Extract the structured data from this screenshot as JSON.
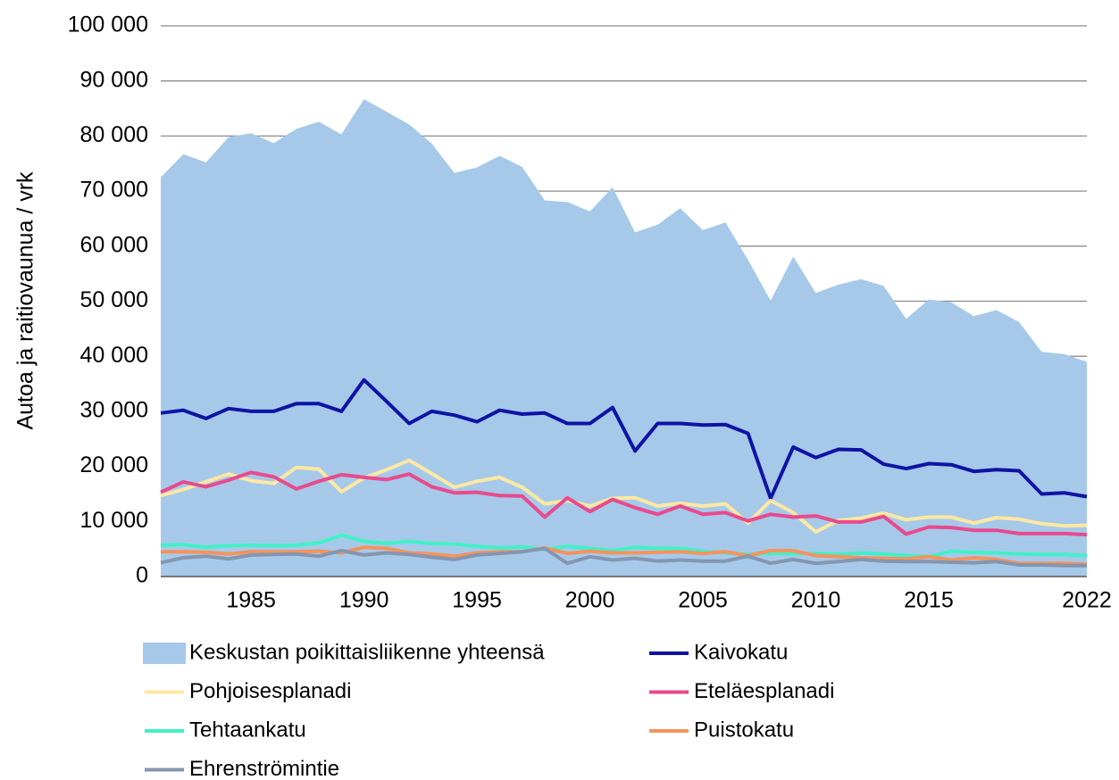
{
  "chart_data": {
    "type": "line",
    "y_label": "Autoa ja raitiovaunua / vrk",
    "categories": [
      null,
      null,
      null,
      null,
      "1985",
      null,
      null,
      null,
      null,
      "1990",
      null,
      null,
      null,
      null,
      "1995",
      null,
      null,
      null,
      null,
      "2000",
      null,
      null,
      null,
      null,
      "2005",
      null,
      null,
      null,
      null,
      "2010",
      null,
      null,
      null,
      null,
      "2015",
      null,
      null,
      null,
      null,
      null,
      null,
      "2022"
    ],
    "ylim": [
      0,
      100000
    ],
    "yticks": [
      {
        "value": 0,
        "label": "0"
      },
      {
        "value": 10000,
        "label": "10 000"
      },
      {
        "value": 20000,
        "label": "20 000"
      },
      {
        "value": 30000,
        "label": "30 000"
      },
      {
        "value": 40000,
        "label": "40 000"
      },
      {
        "value": 50000,
        "label": "50 000"
      },
      {
        "value": 60000,
        "label": "60 000"
      },
      {
        "value": 70000,
        "label": "70 000"
      },
      {
        "value": 80000,
        "label": "80 000"
      },
      {
        "value": 90000,
        "label": "90 000"
      },
      {
        "value": 100000,
        "label": "100 000"
      }
    ],
    "grid": true,
    "series": [
      {
        "name": "Keskustan poikittaisliikenne yhteensä",
        "color": "#a6c9ea",
        "fill": true,
        "values": [
          72500,
          76700,
          75200,
          79800,
          80500,
          78700,
          81300,
          82600,
          80300,
          86700,
          84400,
          82100,
          78600,
          73300,
          74300,
          76400,
          74400,
          68300,
          68000,
          66300,
          70700,
          62500,
          63900,
          66900,
          62900,
          64300,
          57500,
          50100,
          58100,
          51500,
          53000,
          54000,
          52800,
          46800,
          50300,
          49800,
          47300,
          48400,
          46200,
          40800,
          40400,
          39000
        ]
      },
      {
        "name": "Kaivokatu",
        "color": "#0f13a3",
        "values": [
          29700,
          30200,
          28700,
          30500,
          30000,
          30000,
          31400,
          31400,
          30000,
          35700,
          31800,
          27800,
          30000,
          29300,
          28100,
          30200,
          29500,
          29700,
          27800,
          27800,
          30700,
          22800,
          27800,
          27800,
          27500,
          27600,
          26000,
          14200,
          23500,
          21600,
          23100,
          23000,
          20400,
          19600,
          20500,
          20300,
          19100,
          19400,
          19200,
          15000,
          15200,
          14500
        ]
      },
      {
        "name": "Pohjoisesplanadi",
        "color": "#fde8a2",
        "values": [
          14700,
          15800,
          17200,
          18600,
          17400,
          16900,
          19800,
          19500,
          15400,
          17900,
          19400,
          21100,
          18700,
          16200,
          17300,
          18000,
          16200,
          13200,
          13800,
          12800,
          14200,
          14300,
          12800,
          13300,
          12800,
          13200,
          9700,
          13800,
          11600,
          8100,
          10200,
          10600,
          11500,
          10300,
          10800,
          10800,
          9700,
          10700,
          10400,
          9600,
          9200,
          9300
        ]
      },
      {
        "name": "Eteläesplanadi",
        "color": "#e84a8c",
        "values": [
          15300,
          17200,
          16300,
          17500,
          18900,
          18100,
          15900,
          17300,
          18500,
          18000,
          17600,
          18600,
          16300,
          15200,
          15300,
          14700,
          14600,
          10800,
          14300,
          11800,
          14000,
          12500,
          11300,
          12800,
          11300,
          11600,
          10100,
          11300,
          10800,
          11000,
          9900,
          9900,
          10900,
          7700,
          9000,
          8900,
          8400,
          8400,
          7800,
          7800,
          7800,
          7600
        ]
      },
      {
        "name": "Tehtaankatu",
        "color": "#42f0c6",
        "values": [
          5700,
          5800,
          5300,
          5600,
          5700,
          5600,
          5700,
          6100,
          7500,
          6400,
          6000,
          6400,
          6000,
          5900,
          5500,
          5200,
          5400,
          4900,
          5500,
          5100,
          4700,
          5300,
          5100,
          5100,
          4600,
          4300,
          4000,
          4200,
          4200,
          4200,
          4000,
          4300,
          4100,
          3800,
          3600,
          4600,
          4400,
          4300,
          4100,
          4000,
          4000,
          3800
        ]
      },
      {
        "name": "Puistokatu",
        "color": "#f4935c",
        "values": [
          4500,
          4500,
          4400,
          4100,
          4500,
          4500,
          4500,
          4600,
          4300,
          5300,
          5100,
          4300,
          4100,
          3700,
          4300,
          4500,
          4500,
          5200,
          4200,
          4600,
          4300,
          4300,
          4400,
          4500,
          4200,
          4500,
          3800,
          4700,
          4700,
          3800,
          3600,
          3400,
          3300,
          3200,
          3600,
          3000,
          3400,
          3100,
          2400,
          2400,
          2400,
          2200
        ]
      },
      {
        "name": "Ehrenströmintie",
        "color": "#8496b0",
        "values": [
          2500,
          3400,
          3700,
          3200,
          3900,
          4000,
          4100,
          3700,
          4700,
          3900,
          4300,
          4000,
          3500,
          3100,
          3900,
          4200,
          4500,
          5100,
          2400,
          3600,
          3000,
          3300,
          2800,
          3000,
          2800,
          2800,
          3700,
          2400,
          3100,
          2400,
          2700,
          3100,
          2800,
          2700,
          2700,
          2600,
          2500,
          2700,
          2100,
          2100,
          2000,
          2000
        ]
      }
    ]
  }
}
